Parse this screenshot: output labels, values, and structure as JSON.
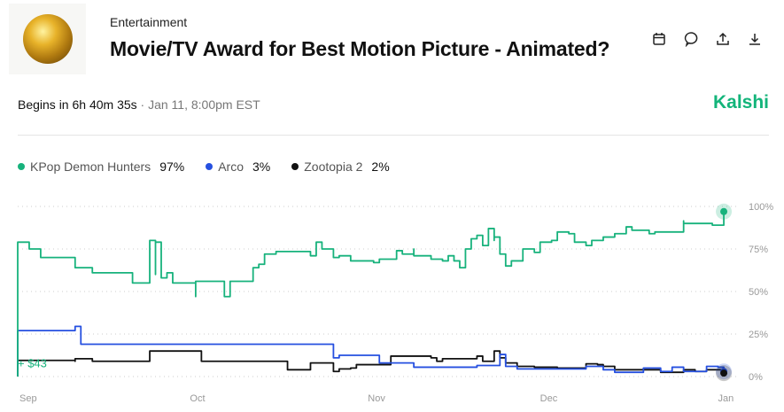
{
  "header": {
    "category": "Entertainment",
    "title": "Movie/TV Award for Best Motion Picture - Animated?",
    "icons": [
      "calendar-icon",
      "comment-icon",
      "share-icon",
      "download-icon"
    ]
  },
  "status": {
    "begins": "Begins in 6h 40m 35s",
    "date": " · Jan 11, 8:00pm EST"
  },
  "brand": "Kalshi",
  "legend": [
    {
      "name": "KPop Demon Hunters",
      "value": "97%",
      "color": "#17b27c"
    },
    {
      "name": "Arco",
      "value": "3%",
      "color": "#2650e0"
    },
    {
      "name": "Zootopia 2",
      "value": "2%",
      "color": "#111111"
    }
  ],
  "chart_data": {
    "type": "line",
    "x_tick_labels": [
      "Sep",
      "Oct",
      "Nov",
      "Dec",
      "Jan"
    ],
    "y_tick_labels": [
      "100%",
      "75%",
      "50%",
      "25%",
      "0%"
    ],
    "ylim": [
      0,
      100
    ],
    "grid": "horizontal dotted",
    "annotation": "+ $43",
    "series": [
      {
        "name": "KPop Demon Hunters",
        "color": "#17b27c",
        "points": [
          [
            "2025-09-01",
            73
          ],
          [
            "2025-09-01",
            79
          ],
          [
            "2025-09-02",
            79
          ],
          [
            "2025-09-03",
            75
          ],
          [
            "2025-09-05",
            75
          ],
          [
            "2025-09-05",
            70
          ],
          [
            "2025-09-11",
            70
          ],
          [
            "2025-09-11",
            64
          ],
          [
            "2025-09-13",
            64
          ],
          [
            "2025-09-14",
            61
          ],
          [
            "2025-09-21",
            61
          ],
          [
            "2025-09-21",
            55
          ],
          [
            "2025-09-24",
            55
          ],
          [
            "2025-09-24",
            80
          ],
          [
            "2025-09-25",
            60
          ],
          [
            "2025-09-25",
            79
          ],
          [
            "2025-09-26",
            58
          ],
          [
            "2025-09-27",
            61
          ],
          [
            "2025-09-28",
            61
          ],
          [
            "2025-09-28",
            55
          ],
          [
            "2025-10-01",
            55
          ],
          [
            "2025-10-02",
            47
          ],
          [
            "2025-10-02",
            56
          ],
          [
            "2025-10-07",
            56
          ],
          [
            "2025-10-07",
            47
          ],
          [
            "2025-10-08",
            56
          ],
          [
            "2025-10-11",
            56
          ],
          [
            "2025-10-12",
            64
          ],
          [
            "2025-10-13",
            66
          ],
          [
            "2025-10-14",
            72
          ],
          [
            "2025-10-16",
            73.5
          ],
          [
            "2025-10-21",
            73.5
          ],
          [
            "2025-10-22",
            71
          ],
          [
            "2025-10-23",
            79
          ],
          [
            "2025-10-24",
            75
          ],
          [
            "2025-10-25",
            75
          ],
          [
            "2025-10-26",
            70
          ],
          [
            "2025-10-27",
            71
          ],
          [
            "2025-10-29",
            68
          ],
          [
            "2025-11-02",
            67
          ],
          [
            "2025-11-03",
            69
          ],
          [
            "2025-11-06",
            69
          ],
          [
            "2025-11-06",
            74
          ],
          [
            "2025-11-07",
            72
          ],
          [
            "2025-11-09",
            75
          ],
          [
            "2025-11-09",
            71
          ],
          [
            "2025-11-12",
            71
          ],
          [
            "2025-11-12",
            69
          ],
          [
            "2025-11-14",
            68
          ],
          [
            "2025-11-15",
            71
          ],
          [
            "2025-11-16",
            68
          ],
          [
            "2025-11-17",
            64
          ],
          [
            "2025-11-18",
            75
          ],
          [
            "2025-11-19",
            81
          ],
          [
            "2025-11-20",
            83
          ],
          [
            "2025-11-21",
            77
          ],
          [
            "2025-11-22",
            87
          ],
          [
            "2025-11-23",
            80
          ],
          [
            "2025-11-23",
            82
          ],
          [
            "2025-11-24",
            72
          ],
          [
            "2025-11-25",
            65
          ],
          [
            "2025-11-26",
            68
          ],
          [
            "2025-11-28",
            75
          ],
          [
            "2025-11-30",
            73
          ],
          [
            "2025-12-01",
            79
          ],
          [
            "2025-12-03",
            80
          ],
          [
            "2025-12-04",
            85
          ],
          [
            "2025-12-06",
            84
          ],
          [
            "2025-12-07",
            79
          ],
          [
            "2025-12-09",
            77
          ],
          [
            "2025-12-10",
            80
          ],
          [
            "2025-12-12",
            82
          ],
          [
            "2025-12-14",
            84
          ],
          [
            "2025-12-16",
            88
          ],
          [
            "2025-12-17",
            86
          ],
          [
            "2025-12-20",
            84
          ],
          [
            "2025-12-21",
            85
          ],
          [
            "2025-12-24",
            85
          ],
          [
            "2025-12-26",
            91.5
          ],
          [
            "2025-12-26",
            90
          ],
          [
            "2025-12-30",
            90
          ],
          [
            "2025-12-31",
            89
          ],
          [
            "2026-01-01",
            89
          ],
          [
            "2026-01-02",
            97
          ]
        ]
      },
      {
        "name": "Arco",
        "color": "#2650e0",
        "points": [
          [
            "2025-09-01",
            27
          ],
          [
            "2025-09-11",
            27
          ],
          [
            "2025-09-11",
            29.5
          ],
          [
            "2025-09-12",
            19
          ],
          [
            "2025-10-26",
            19
          ],
          [
            "2025-10-26",
            11
          ],
          [
            "2025-10-27",
            12.5
          ],
          [
            "2025-11-03",
            12.5
          ],
          [
            "2025-11-03",
            8
          ],
          [
            "2025-11-09",
            8
          ],
          [
            "2025-11-09",
            5.5
          ],
          [
            "2025-11-20",
            6.5
          ],
          [
            "2025-11-24",
            7
          ],
          [
            "2025-11-24",
            13
          ],
          [
            "2025-11-25",
            6
          ],
          [
            "2025-11-27",
            4.5
          ],
          [
            "2025-12-02",
            4.5
          ],
          [
            "2025-12-09",
            6
          ],
          [
            "2025-12-12",
            4
          ],
          [
            "2025-12-14",
            2.5
          ],
          [
            "2025-12-19",
            3
          ],
          [
            "2025-12-19",
            5
          ],
          [
            "2025-12-22",
            3
          ],
          [
            "2025-12-24",
            5.5
          ],
          [
            "2025-12-26",
            3
          ],
          [
            "2025-12-30",
            6
          ],
          [
            "2026-01-01",
            5.5
          ],
          [
            "2026-01-02",
            3
          ]
        ]
      },
      {
        "name": "Zootopia 2",
        "color": "#111111",
        "points": [
          [
            "2025-09-01",
            9.5
          ],
          [
            "2025-09-11",
            9
          ],
          [
            "2025-09-11",
            10.5
          ],
          [
            "2025-09-13",
            10.5
          ],
          [
            "2025-09-14",
            9
          ],
          [
            "2025-09-24",
            9
          ],
          [
            "2025-09-24",
            15
          ],
          [
            "2025-10-02",
            15
          ],
          [
            "2025-10-03",
            9
          ],
          [
            "2025-10-17",
            9
          ],
          [
            "2025-10-18",
            4
          ],
          [
            "2025-10-22",
            4
          ],
          [
            "2025-10-22",
            8
          ],
          [
            "2025-10-26",
            8
          ],
          [
            "2025-10-26",
            3
          ],
          [
            "2025-10-27",
            4.5
          ],
          [
            "2025-10-29",
            5
          ],
          [
            "2025-10-30",
            7
          ],
          [
            "2025-11-03",
            7
          ],
          [
            "2025-11-05",
            12
          ],
          [
            "2025-11-09",
            12
          ],
          [
            "2025-11-12",
            11
          ],
          [
            "2025-11-13",
            9
          ],
          [
            "2025-11-14",
            10.5
          ],
          [
            "2025-11-19",
            10.5
          ],
          [
            "2025-11-20",
            12
          ],
          [
            "2025-11-21",
            9
          ],
          [
            "2025-11-23",
            15
          ],
          [
            "2025-11-24",
            11
          ],
          [
            "2025-11-25",
            8
          ],
          [
            "2025-11-27",
            6
          ],
          [
            "2025-11-30",
            5.5
          ],
          [
            "2025-12-04",
            5
          ],
          [
            "2025-12-07",
            5
          ],
          [
            "2025-12-09",
            7.5
          ],
          [
            "2025-12-11",
            7
          ],
          [
            "2025-12-12",
            6
          ],
          [
            "2025-12-14",
            4
          ],
          [
            "2025-12-20",
            4
          ],
          [
            "2025-12-22",
            2.5
          ],
          [
            "2025-12-26",
            4
          ],
          [
            "2025-12-28",
            3
          ],
          [
            "2025-12-30",
            4
          ],
          [
            "2026-01-02",
            2
          ]
        ]
      }
    ]
  }
}
